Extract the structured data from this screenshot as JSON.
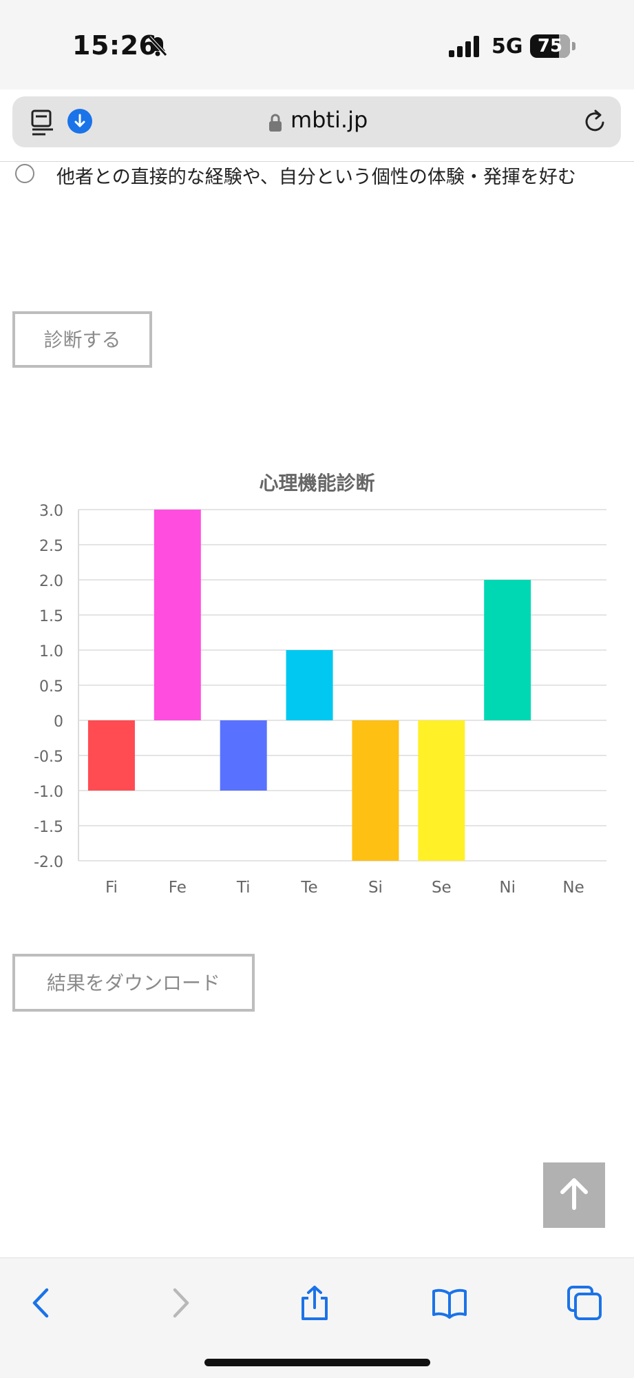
{
  "status_bar": {
    "time": "15:26",
    "network": "5G",
    "battery": "75",
    "icons": [
      "bell-off-icon",
      "signal-icon",
      "battery-icon"
    ]
  },
  "browser": {
    "url": "mbti.jp",
    "icons": [
      "reader-icon",
      "download-icon",
      "lock-icon",
      "reload-icon"
    ]
  },
  "question": {
    "option_text": "他者との直接的な経験や、自分という個性の体験・発揮を好む"
  },
  "buttons": {
    "diagnose": "診断する",
    "download": "結果をダウンロード"
  },
  "chart_data": {
    "type": "bar",
    "title": "心理機能診断",
    "categories": [
      "Fi",
      "Fe",
      "Ti",
      "Te",
      "Si",
      "Se",
      "Ni",
      "Ne"
    ],
    "values": [
      -1,
      3,
      -1,
      1,
      -2,
      -2,
      2,
      0
    ],
    "colors": [
      "#ff4b52",
      "#ff4ddf",
      "#5872ff",
      "#00c8f0",
      "#ffc014",
      "#fff027",
      "#00d8b4",
      "#cccccc"
    ],
    "ylim": [
      -2,
      3
    ],
    "yticks": [
      "3.0",
      "2.5",
      "2.0",
      "1.5",
      "1.0",
      "0.5",
      "0",
      "-0.5",
      "-1.0",
      "-1.5",
      "-2.0"
    ],
    "ytick_values": [
      3,
      2.5,
      2,
      1.5,
      1,
      0.5,
      0,
      -0.5,
      -1,
      -1.5,
      -2
    ],
    "grid": true
  },
  "toolbar": {
    "icons": [
      "back-icon",
      "forward-icon",
      "share-icon",
      "bookmarks-icon",
      "tabs-icon"
    ]
  },
  "colors": {
    "accent": "#1a73e8",
    "button_border": "#bdbdbd",
    "to_top_bg": "#b1b1b1"
  }
}
